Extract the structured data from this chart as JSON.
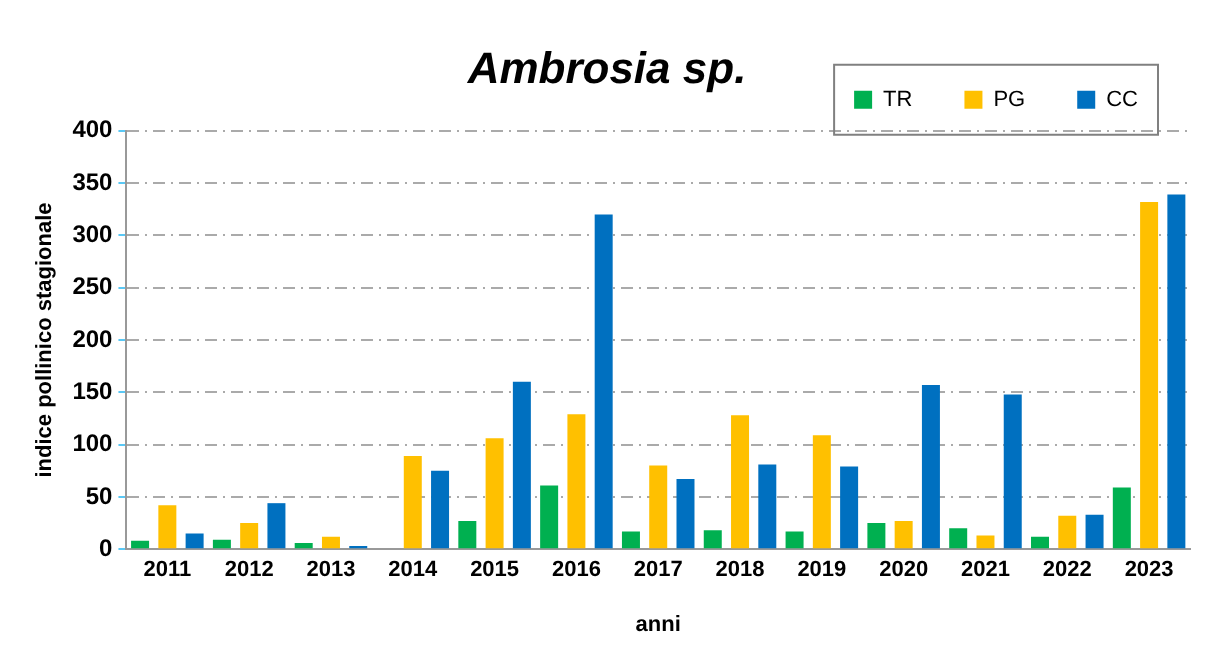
{
  "chart_data": {
    "type": "bar",
    "title": "Ambrosia sp.",
    "xlabel": "anni",
    "ylabel": "indice pollinico stagionale",
    "categories": [
      "2011",
      "2012",
      "2013",
      "2014",
      "2015",
      "2016",
      "2017",
      "2018",
      "2019",
      "2020",
      "2021",
      "2022",
      "2023"
    ],
    "series": [
      {
        "name": "TR",
        "color": "#00b050",
        "values": [
          8,
          9,
          6,
          null,
          27,
          61,
          17,
          18,
          17,
          25,
          20,
          12,
          59
        ]
      },
      {
        "name": "PG",
        "color": "#ffc000",
        "values": [
          42,
          25,
          12,
          89,
          106,
          129,
          80,
          128,
          109,
          27,
          13,
          32,
          332
        ]
      },
      {
        "name": "CC",
        "color": "#0070c0",
        "values": [
          15,
          44,
          3,
          75,
          160,
          320,
          67,
          81,
          79,
          157,
          148,
          33,
          339
        ]
      }
    ],
    "ylim": [
      0,
      400
    ],
    "yticks": [
      0,
      50,
      100,
      150,
      200,
      250,
      300,
      350,
      400
    ],
    "grid": "y",
    "legend": "top right"
  }
}
